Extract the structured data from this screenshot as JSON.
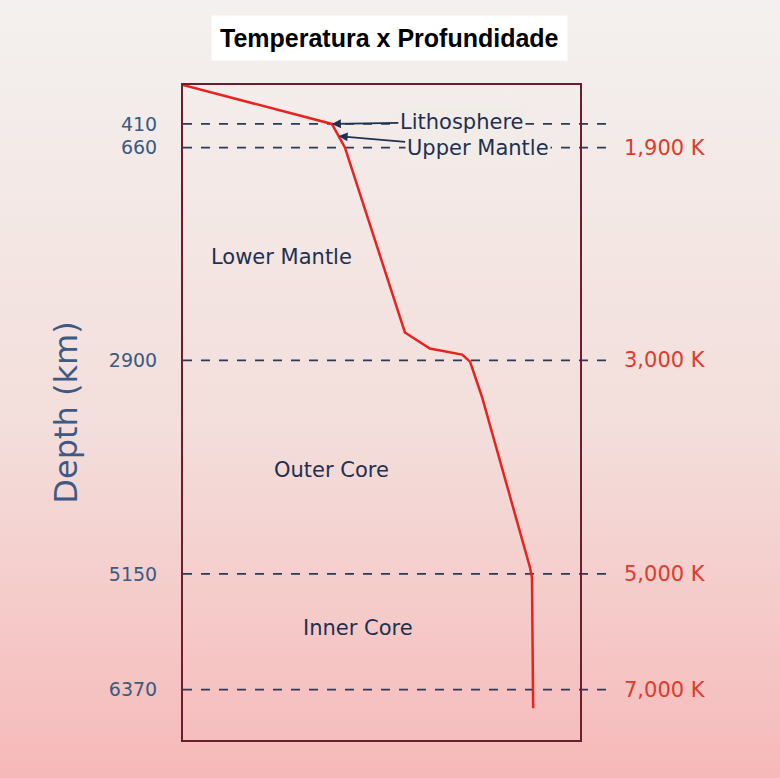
{
  "chart_data": {
    "type": "line",
    "title": "Temperatura x Profundidade",
    "y_label": "Depth (km)",
    "x": [
      0,
      37.5,
      40.8,
      55.9,
      62.2,
      70.3,
      72.3,
      75.3,
      87.4,
      87.9,
      88.2
    ],
    "values": [
      0,
      410,
      660,
      2607,
      2776,
      2840,
      2914,
      3284,
      5083,
      5190,
      6565
    ],
    "color": "#e8231f",
    "line_style": "solid",
    "xlim": [
      0,
      100
    ],
    "ylim": [
      6900,
      0
    ],
    "yticks": [
      410,
      660,
      2900,
      5150,
      6370
    ],
    "tick_labels": "y",
    "grid": false,
    "regions": [
      "Lithosphere",
      "Upper Mantle",
      "Lower Mantle",
      "Outer Core",
      "Inner Core"
    ],
    "temperature_labels": [
      {
        "y": 660,
        "label": "1,900 K"
      },
      {
        "y": 2900,
        "label": "3,000 K"
      },
      {
        "y": 5150,
        "label": "5,000 K"
      },
      {
        "y": 6370,
        "label": "7,000 K"
      }
    ]
  }
}
